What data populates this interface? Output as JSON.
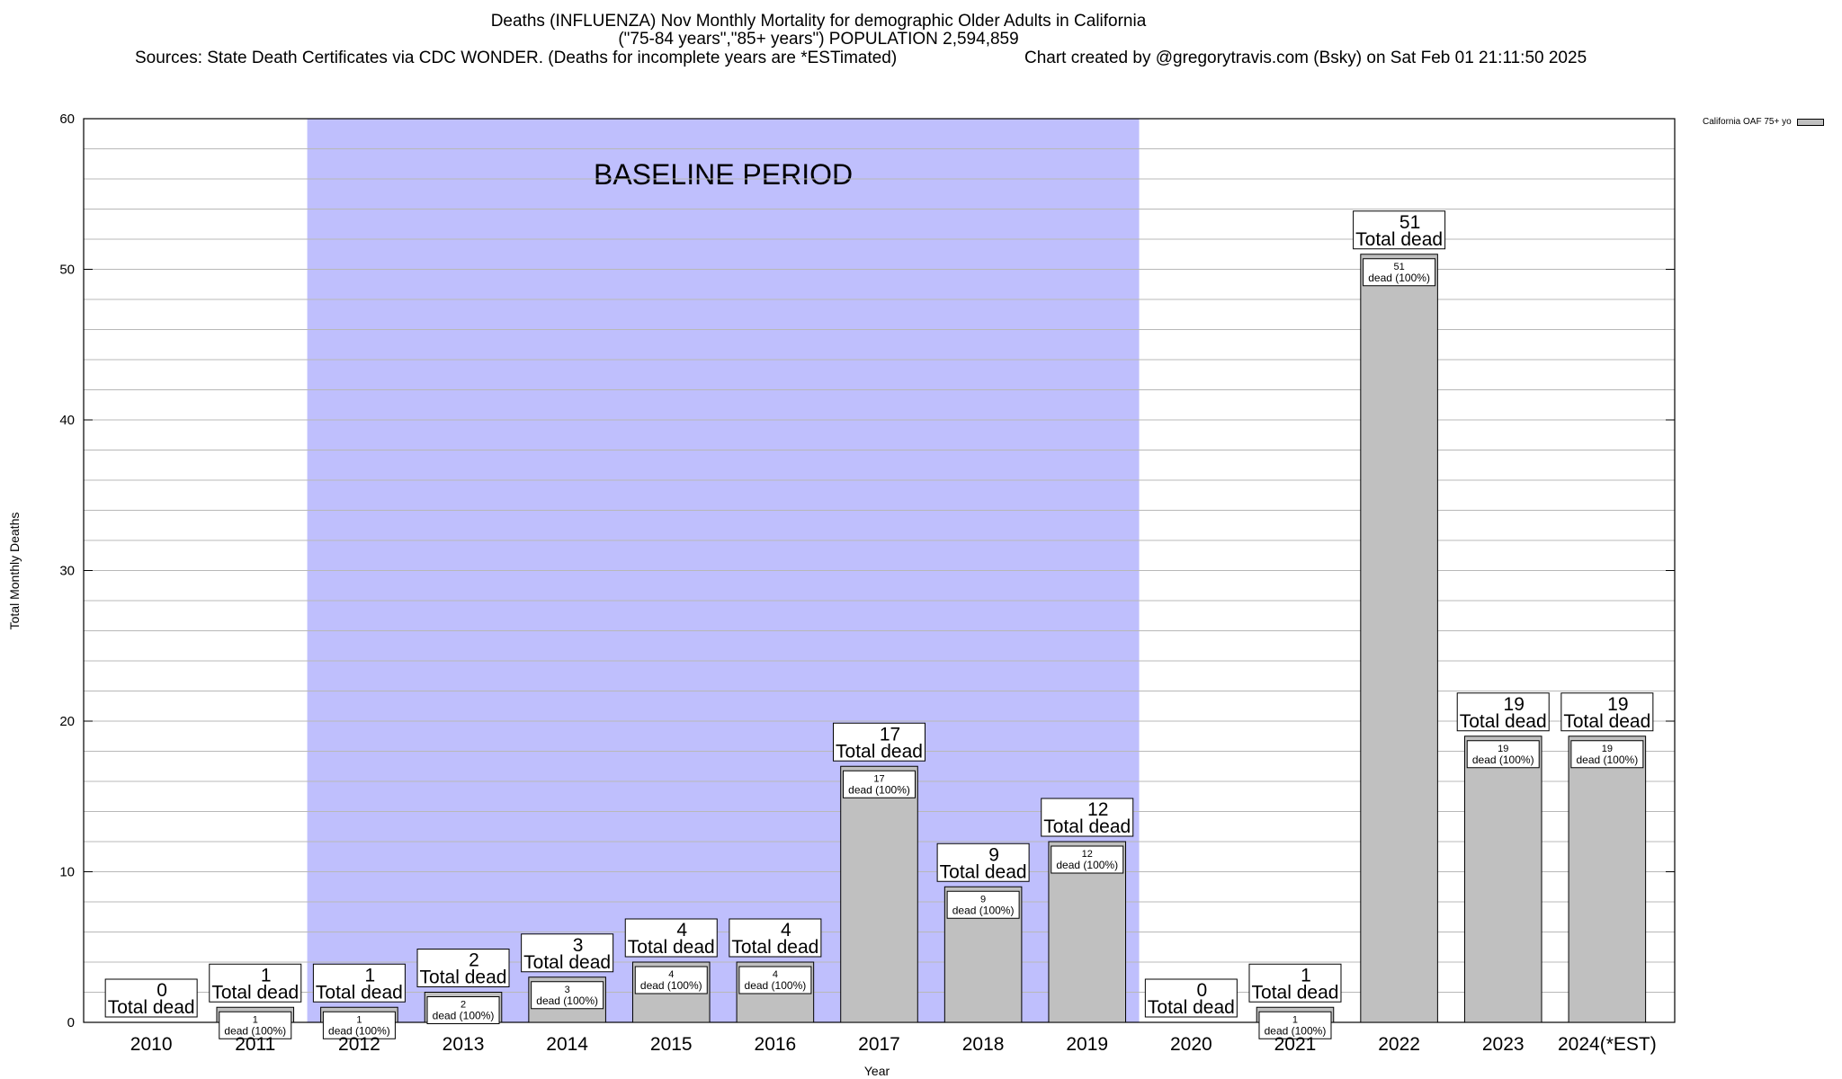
{
  "titles": {
    "line1": "Deaths (INFLUENZA) Nov Monthly Mortality for demographic Older Adults in California",
    "line2": "(\"75-84 years\",\"85+ years\") POPULATION 2,594,859",
    "source": "Sources: State Death Certificates via CDC WONDER. (Deaths for incomplete years are *ESTimated)",
    "credit": "Chart created by @gregorytravis.com (Bsky) on Sat Feb 01 21:11:50 2025"
  },
  "colors": {
    "baseline": "#bfbffd",
    "bar": "#c0c0c0",
    "grid": "#b8b8b8"
  },
  "chart_data": {
    "type": "bar",
    "categories": [
      "2010",
      "2011",
      "2012",
      "2013",
      "2014",
      "2015",
      "2016",
      "2017",
      "2018",
      "2019",
      "2020",
      "2021",
      "2022",
      "2023",
      "2024(*EST)"
    ],
    "series": [
      {
        "name": "California OAF 75+ yo",
        "values": [
          0,
          1,
          1,
          2,
          3,
          4,
          4,
          17,
          9,
          12,
          0,
          1,
          51,
          19,
          19
        ]
      }
    ],
    "xlabel": "Year",
    "ylabel": "Total Monthly Deaths",
    "ylim": [
      0,
      60
    ],
    "yticks": [
      0,
      10,
      20,
      30,
      40,
      50,
      60
    ],
    "grid": true,
    "legend_position": "top-right",
    "total_label": "Total dead",
    "segment_label": "dead (100%)",
    "baseline_period": {
      "label": "BASELINE PERIOD",
      "from": "2012",
      "to": "2019"
    }
  }
}
